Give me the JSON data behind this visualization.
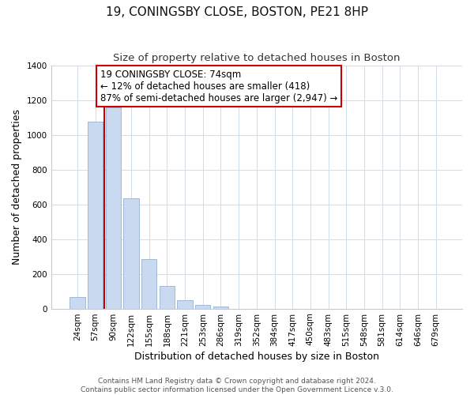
{
  "title": "19, CONINGSBY CLOSE, BOSTON, PE21 8HP",
  "subtitle": "Size of property relative to detached houses in Boston",
  "xlabel": "Distribution of detached houses by size in Boston",
  "ylabel": "Number of detached properties",
  "footer_line1": "Contains HM Land Registry data © Crown copyright and database right 2024.",
  "footer_line2": "Contains public sector information licensed under the Open Government Licence v.3.0.",
  "bar_labels": [
    "24sqm",
    "57sqm",
    "90sqm",
    "122sqm",
    "155sqm",
    "188sqm",
    "221sqm",
    "253sqm",
    "286sqm",
    "319sqm",
    "352sqm",
    "384sqm",
    "417sqm",
    "450sqm",
    "483sqm",
    "515sqm",
    "548sqm",
    "581sqm",
    "614sqm",
    "646sqm",
    "679sqm"
  ],
  "bar_values": [
    65,
    1075,
    1160,
    635,
    285,
    130,
    48,
    20,
    10,
    0,
    0,
    0,
    0,
    0,
    0,
    0,
    0,
    0,
    0,
    0,
    0
  ],
  "bar_color": "#c9d9f0",
  "bar_edge_color": "#a0b8d8",
  "vline_x": 1.5,
  "vline_color": "#cc0000",
  "annotation_box_text": "19 CONINGSBY CLOSE: 74sqm\n← 12% of detached houses are smaller (418)\n87% of semi-detached houses are larger (2,947) →",
  "ylim": [
    0,
    1400
  ],
  "yticks": [
    0,
    200,
    400,
    600,
    800,
    1000,
    1200,
    1400
  ],
  "background_color": "#ffffff",
  "grid_color": "#d0dce8",
  "title_fontsize": 11,
  "subtitle_fontsize": 9.5,
  "axis_label_fontsize": 9,
  "tick_fontsize": 7.5,
  "footer_fontsize": 6.5,
  "annotation_fontsize": 8.5
}
